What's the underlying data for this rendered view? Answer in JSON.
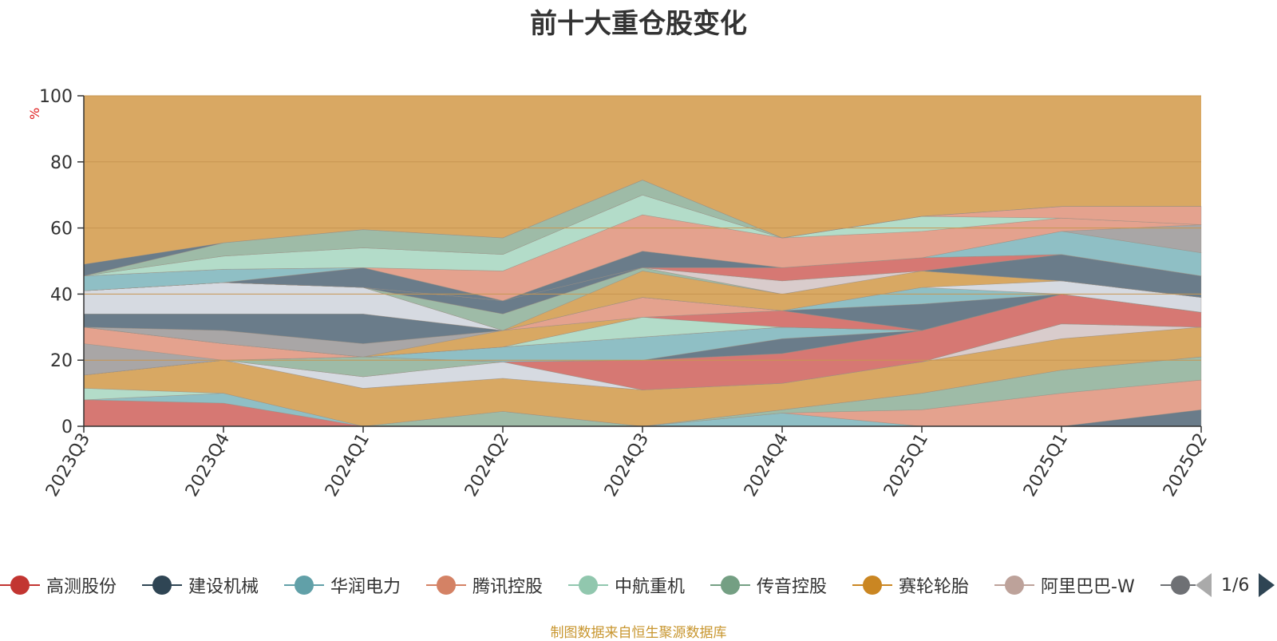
{
  "source_note": "制图数据来自恒生聚源数据库",
  "pager": {
    "text": "1/6"
  },
  "colors": {
    "axis": "#333333",
    "grid": "#c79652",
    "background_band": "#d9a863"
  },
  "chart_data": {
    "type": "area",
    "title": "前十大重仓股变化",
    "ylabel": "%",
    "xlabel": "",
    "ylim": [
      0,
      100
    ],
    "yticks": [
      0,
      20,
      40,
      60,
      80,
      100
    ],
    "categories": [
      "2023Q3",
      "2023Q4",
      "2024Q1",
      "2024Q2",
      "2024Q3",
      "2024Q4",
      "2025Q1",
      "2025Q1",
      "2025Q2"
    ],
    "grid": true,
    "legend_position": "bottom",
    "legend": [
      {
        "name": "高测股份",
        "color": "#c23531"
      },
      {
        "name": "建设机械",
        "color": "#2f4554"
      },
      {
        "name": "华润电力",
        "color": "#61a0a8"
      },
      {
        "name": "腾讯控股",
        "color": "#d48265"
      },
      {
        "name": "中航重机",
        "color": "#91c7ae"
      },
      {
        "name": "传音控股",
        "color": "#749f83"
      },
      {
        "name": "赛轮轮胎",
        "color": "#ca8622"
      },
      {
        "name": "阿里巴巴-W",
        "color": "#bda29a"
      },
      {
        "name": "",
        "color": "#6e7074"
      }
    ],
    "bands": [
      {
        "color": "#d67873",
        "lower": [
          0,
          0,
          0,
          0,
          0,
          0,
          0,
          0,
          0
        ],
        "upper": [
          8,
          7,
          0,
          0,
          0,
          0,
          0,
          0,
          0
        ]
      },
      {
        "color": "#6a7c8a",
        "lower": [
          0,
          0,
          0,
          0,
          0,
          0,
          0,
          0,
          0
        ],
        "upper": [
          0,
          0,
          0,
          0,
          0,
          0,
          0,
          0,
          5
        ]
      },
      {
        "color": "#8fbfc5",
        "lower": [
          8,
          7,
          0,
          0,
          0,
          0,
          0,
          0,
          0
        ],
        "upper": [
          8,
          10,
          0,
          0,
          0,
          4,
          0,
          0,
          0
        ]
      },
      {
        "color": "#e4a28e",
        "lower": [
          0,
          0,
          0,
          0,
          0,
          4,
          0,
          0,
          5
        ],
        "upper": [
          0,
          0,
          0,
          0,
          0,
          4,
          5,
          10,
          14
        ]
      },
      {
        "color": "#9ebba7",
        "lower": [
          0,
          0,
          0,
          0,
          0,
          4,
          5,
          10,
          14
        ],
        "upper": [
          0,
          0,
          0,
          4.5,
          0,
          5,
          10,
          17,
          21
        ]
      },
      {
        "color": "#b3dcc9",
        "lower": [
          8,
          10,
          0,
          4.5,
          0,
          5,
          10,
          17,
          21
        ],
        "upper": [
          11.5,
          10,
          0,
          4.5,
          0,
          5,
          10,
          17,
          21
        ]
      },
      {
        "color": "#d8a863",
        "lower": [
          11.5,
          10,
          0,
          4.5,
          0,
          5,
          10,
          17,
          21
        ],
        "upper": [
          15.5,
          20,
          11.5,
          14.5,
          11,
          13,
          19.5,
          26.5,
          30
        ]
      },
      {
        "color": "#d9cccc",
        "lower": [
          15.5,
          20,
          11.5,
          14.5,
          11,
          13,
          19.5,
          26.5,
          30
        ],
        "upper": [
          15.5,
          20,
          11.5,
          14.5,
          11,
          13,
          19.5,
          31,
          30
        ]
      },
      {
        "color": "#d6dae1",
        "lower": [
          15.5,
          20,
          11.5,
          14.5,
          11,
          13,
          19.5,
          31,
          30
        ],
        "upper": [
          15.5,
          20,
          15,
          19.5,
          11,
          13,
          19.5,
          31,
          30
        ]
      },
      {
        "color": "#d67873",
        "lower": [
          15.5,
          20,
          15,
          19.5,
          11,
          13,
          19.5,
          31,
          30
        ],
        "upper": [
          15.5,
          20,
          15,
          19.5,
          20,
          22,
          29,
          40,
          34.5
        ]
      },
      {
        "color": "#9ebba7",
        "lower": [
          15.5,
          20,
          15,
          19.5,
          20,
          22,
          29,
          40,
          34.5
        ],
        "upper": [
          15.5,
          20,
          21,
          19.5,
          20,
          22,
          29,
          40,
          34.5
        ]
      },
      {
        "color": "#6a7c8a",
        "lower": [
          15.5,
          20,
          21,
          19.5,
          20,
          22,
          29,
          40,
          34.5
        ],
        "upper": [
          15.5,
          20,
          21,
          19.5,
          20,
          26.5,
          29,
          40,
          34.5
        ]
      },
      {
        "color": "#8fbfc5",
        "lower": [
          15.5,
          20,
          21,
          19.5,
          20,
          26.5,
          29,
          40,
          34.5
        ],
        "upper": [
          15.5,
          20,
          21,
          24,
          27,
          30,
          29,
          40,
          34.5
        ]
      },
      {
        "color": "#a9a6a6",
        "lower": [
          15.5,
          20,
          21,
          24,
          27,
          30,
          29,
          40,
          34.5
        ],
        "upper": [
          25,
          20,
          21,
          24,
          27,
          30,
          29,
          40,
          34.5
        ]
      },
      {
        "color": "#e4a28e",
        "lower": [
          25,
          20,
          21,
          24,
          27,
          30,
          29,
          40,
          34.5
        ],
        "upper": [
          30,
          25,
          21,
          24,
          27,
          30,
          29,
          40,
          34.5
        ]
      },
      {
        "color": "#b3dcc9",
        "lower": [
          30,
          25,
          21,
          24,
          27,
          30,
          29,
          40,
          34.5
        ],
        "upper": [
          30,
          25,
          21,
          24,
          33,
          30,
          29,
          40,
          34.5
        ]
      },
      {
        "color": "#d67873",
        "lower": [
          30,
          25,
          21,
          24,
          33,
          30,
          29,
          40,
          34.5
        ],
        "upper": [
          30,
          25,
          21,
          24,
          33,
          35,
          29,
          40,
          34.5
        ]
      },
      {
        "color": "#d8a863",
        "lower": [
          30,
          25,
          21,
          24,
          33,
          35,
          29,
          40,
          34.5
        ],
        "upper": [
          30,
          25,
          21,
          29,
          33,
          35,
          29,
          40,
          34.5
        ]
      },
      {
        "color": "#a9a6a6",
        "lower": [
          30,
          25,
          21,
          29,
          33,
          35,
          29,
          40,
          34.5
        ],
        "upper": [
          30,
          29,
          25,
          29,
          33,
          35,
          29,
          40,
          34.5
        ]
      },
      {
        "color": "#e4a28e",
        "lower": [
          30,
          29,
          25,
          29,
          33,
          35,
          29,
          40,
          34.5
        ],
        "upper": [
          30,
          29,
          25,
          29,
          39,
          35,
          29,
          40,
          34.5
        ]
      },
      {
        "color": "#6a7c8a",
        "lower": [
          30,
          29,
          25,
          29,
          39,
          35,
          29,
          40,
          34.5
        ],
        "upper": [
          34,
          34,
          34,
          29,
          39,
          35,
          37,
          40,
          34.5
        ]
      },
      {
        "color": "#8fbfc5",
        "lower": [
          34,
          34,
          34,
          29,
          39,
          35,
          37,
          40,
          34.5
        ],
        "upper": [
          34,
          34,
          34,
          29,
          39,
          35,
          42,
          40,
          34.5
        ]
      },
      {
        "color": "#d6dae1",
        "lower": [
          34,
          34,
          34,
          29,
          39,
          35,
          42,
          40,
          34.5
        ],
        "upper": [
          41,
          43.5,
          42,
          29,
          39,
          35,
          42,
          44,
          39
        ]
      },
      {
        "color": "#d8a863",
        "lower": [
          41,
          43.5,
          42,
          29,
          39,
          35,
          42,
          44,
          39
        ],
        "upper": [
          41,
          43.5,
          42,
          29,
          47,
          40,
          47,
          44,
          39
        ]
      },
      {
        "color": "#9ebba7",
        "lower": [
          41,
          43.5,
          42,
          29,
          47,
          40,
          47,
          44,
          39
        ],
        "upper": [
          41,
          43.5,
          42,
          34,
          48,
          40,
          47,
          44,
          39
        ]
      },
      {
        "color": "#d9cccc",
        "lower": [
          41,
          43.5,
          42,
          34,
          48,
          40,
          47,
          44,
          39
        ],
        "upper": [
          41,
          43.5,
          42,
          34,
          48,
          44,
          47,
          44,
          39
        ]
      },
      {
        "color": "#6a7c8a",
        "lower": [
          41,
          43.5,
          42,
          34,
          48,
          44,
          47,
          44,
          39
        ],
        "upper": [
          41,
          43.5,
          42,
          38,
          48,
          44,
          47,
          52,
          45.5
        ]
      },
      {
        "color": "#d67873",
        "lower": [
          41,
          43.5,
          42,
          38,
          48,
          44,
          47,
          52,
          45.5
        ],
        "upper": [
          41,
          43.5,
          42,
          38,
          48,
          48,
          51,
          52,
          45.5
        ]
      },
      {
        "color": "#d6dae1",
        "lower": [
          41,
          43.5,
          42,
          38,
          48,
          48,
          51,
          52,
          45.5
        ],
        "upper": [
          41,
          43.5,
          42,
          38,
          48,
          48,
          51,
          52,
          45.5
        ]
      },
      {
        "color": "#6a7c8a",
        "lower": [
          41,
          43.5,
          42,
          38,
          48,
          48,
          51,
          52,
          45.5
        ],
        "upper": [
          41,
          43.5,
          48,
          38,
          53,
          48,
          51,
          52,
          45.5
        ]
      },
      {
        "color": "#8fbfc5",
        "lower": [
          41,
          43.5,
          48,
          38,
          53,
          48,
          51,
          52,
          45.5
        ],
        "upper": [
          45.5,
          47.5,
          48,
          38,
          53,
          48,
          51,
          59,
          52.5
        ]
      },
      {
        "color": "#a9a6a6",
        "lower": [
          45.5,
          47.5,
          48,
          38,
          53,
          48,
          51,
          59,
          52.5
        ],
        "upper": [
          45.5,
          47.5,
          48,
          38,
          53,
          48,
          51,
          59,
          61
        ]
      },
      {
        "color": "#e4a28e",
        "lower": [
          45.5,
          47.5,
          48,
          38,
          53,
          48,
          51,
          59,
          61
        ],
        "upper": [
          45.5,
          47.5,
          48,
          47,
          64,
          57,
          59,
          63,
          61
        ]
      },
      {
        "color": "#b3dcc9",
        "lower": [
          45.5,
          47.5,
          48,
          47,
          64,
          57,
          59,
          63,
          61
        ],
        "upper": [
          45.5,
          51.5,
          54,
          52,
          70,
          57,
          63.5,
          63,
          61
        ]
      },
      {
        "color": "#e4a28e",
        "lower": [
          45.5,
          51.5,
          54,
          52,
          70,
          57,
          63.5,
          63,
          61
        ],
        "upper": [
          45.5,
          51.5,
          54,
          52,
          70,
          57,
          63.5,
          66.5,
          66.5
        ]
      },
      {
        "color": "#9ebba7",
        "lower": [
          45.5,
          51.5,
          54,
          52,
          70,
          57,
          63.5,
          66.5,
          66.5
        ],
        "upper": [
          45.5,
          55.5,
          59.5,
          57,
          74.5,
          57,
          63.5,
          66.5,
          66.5
        ]
      },
      {
        "color": "#6a7c8a",
        "lower": [
          45.5,
          55.5,
          59.5,
          57,
          74.5,
          57,
          63.5,
          66.5,
          66.5
        ],
        "upper": [
          49,
          55.5,
          59.5,
          57,
          74.5,
          57,
          63.5,
          66.5,
          66.5
        ]
      }
    ]
  }
}
